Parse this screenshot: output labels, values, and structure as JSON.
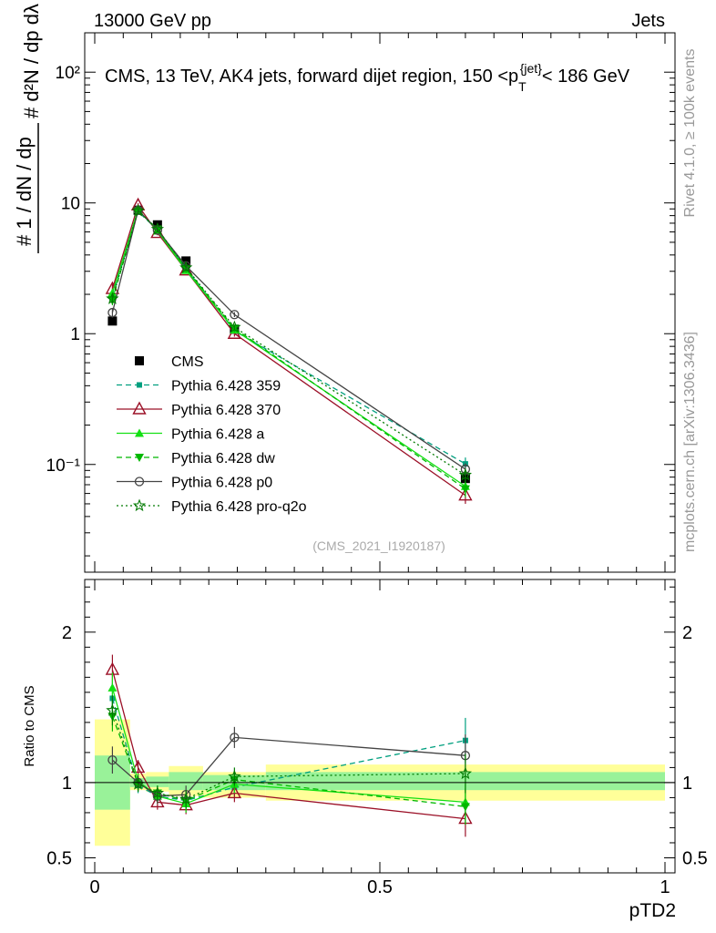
{
  "header": {
    "left": "13000 GeV pp",
    "right": "Jets"
  },
  "side_labels": {
    "rivet": "Rivet 4.1.0, ≥ 100k events",
    "mcplots": "mcplots.cern.ch [arXiv:1306.3436]"
  },
  "watermark": "(CMS_2021_I1920187)",
  "colors": {
    "cms": "#000000",
    "p359": "#009f7f",
    "p370": "#9b1027",
    "pa": "#14e014",
    "pdw": "#00b800",
    "pp0": "#444444",
    "pq2o": "#007a00",
    "band_stat": "#99f299",
    "band_tot": "#ffff99"
  },
  "chart_data": [
    {
      "type": "line",
      "panel": "main",
      "title": "CMS, 13 TeV, AK4 jets, forward dijet region, 150 <p_T^{jet}< 186 GeV",
      "ylabel": "1/dN/dp_T  d²N/(dp_T dλ)",
      "yscale": "log",
      "ylim": [
        0.015,
        200
      ],
      "xlim": [
        -0.03,
        1.0
      ],
      "ytick_labels": [
        "10⁻¹",
        "1",
        "10",
        "10²"
      ],
      "ytick_values": [
        0.1,
        1,
        10,
        100
      ],
      "x": [
        0.031,
        0.076,
        0.11,
        0.16,
        0.245,
        0.65
      ],
      "series": [
        {
          "name": "CMS",
          "key": "cms",
          "values": [
            1.25,
            8.8,
            6.8,
            3.6,
            1.08,
            0.078
          ],
          "errors": [
            0.05,
            0.3,
            0.2,
            0.12,
            0.05,
            0.005
          ]
        },
        {
          "name": "Pythia 6.428 359",
          "key": "p359",
          "values": [
            1.95,
            8.6,
            6.2,
            3.15,
            1.05,
            0.101
          ],
          "errors": [
            0.15,
            0.3,
            0.25,
            0.15,
            0.05,
            0.012
          ]
        },
        {
          "name": "Pythia 6.428 370",
          "key": "p370",
          "values": [
            2.2,
            9.6,
            5.9,
            3.05,
            1.0,
            0.058
          ],
          "errors": [
            0.2,
            0.35,
            0.25,
            0.15,
            0.05,
            0.008
          ]
        },
        {
          "name": "Pythia 6.428 a",
          "key": "pa",
          "values": [
            2.05,
            8.9,
            6.1,
            3.05,
            1.07,
            0.068
          ],
          "errors": [
            0.15,
            0.3,
            0.25,
            0.15,
            0.05,
            0.009
          ]
        },
        {
          "name": "Pythia 6.428 dw",
          "key": "pdw",
          "values": [
            1.8,
            8.7,
            6.3,
            3.15,
            1.1,
            0.065
          ],
          "errors": [
            0.15,
            0.3,
            0.25,
            0.15,
            0.05,
            0.009
          ]
        },
        {
          "name": "Pythia 6.428 p0",
          "key": "pp0",
          "values": [
            1.45,
            8.8,
            6.2,
            3.3,
            1.4,
            0.092
          ],
          "errors": [
            0.12,
            0.3,
            0.25,
            0.15,
            0.06,
            0.01
          ]
        },
        {
          "name": "Pythia 6.428 pro-q2o",
          "key": "pq2o",
          "values": [
            1.85,
            8.7,
            6.3,
            3.2,
            1.12,
            0.083
          ],
          "errors": [
            0.15,
            0.3,
            0.25,
            0.15,
            0.05,
            0.01
          ]
        }
      ]
    },
    {
      "type": "line",
      "panel": "ratio",
      "ylabel": "Ratio to CMS",
      "xlabel": "pTD2",
      "ylim": [
        0.4,
        2.35
      ],
      "xlim": [
        -0.03,
        1.0
      ],
      "ytick_labels": [
        "0.5",
        "1",
        "2"
      ],
      "ytick_values": [
        0.5,
        1,
        2
      ],
      "xtick_labels": [
        "0",
        "0.5",
        "1"
      ],
      "xtick_values": [
        0,
        0.5,
        1
      ],
      "x": [
        0.031,
        0.076,
        0.11,
        0.16,
        0.245,
        0.65
      ],
      "bands": {
        "edges": [
          0.0,
          0.062,
          0.09,
          0.13,
          0.19,
          0.3,
          1.0
        ],
        "tot_lo": [
          0.58,
          0.95,
          0.94,
          0.91,
          0.9,
          0.88
        ],
        "tot_hi": [
          1.42,
          1.06,
          1.07,
          1.11,
          1.07,
          1.12
        ],
        "stat_lo": [
          0.82,
          0.97,
          0.97,
          0.95,
          0.95,
          0.95
        ],
        "stat_hi": [
          1.18,
          1.03,
          1.04,
          1.07,
          1.05,
          1.07
        ]
      },
      "series": [
        {
          "name": "Pythia 6.428 359",
          "key": "p359",
          "values": [
            1.56,
            0.98,
            0.91,
            0.88,
            0.97,
            1.28
          ],
          "errors": [
            0.1,
            0.05,
            0.05,
            0.06,
            0.06,
            0.15
          ]
        },
        {
          "name": "Pythia 6.428 370",
          "key": "p370",
          "values": [
            1.75,
            1.1,
            0.87,
            0.85,
            0.93,
            0.76
          ],
          "errors": [
            0.1,
            0.05,
            0.05,
            0.06,
            0.06,
            0.12
          ]
        },
        {
          "name": "Pythia 6.428 a",
          "key": "pa",
          "values": [
            1.63,
            1.01,
            0.91,
            0.86,
            0.99,
            0.87
          ],
          "errors": [
            0.1,
            0.05,
            0.05,
            0.06,
            0.06,
            0.12
          ]
        },
        {
          "name": "Pythia 6.428 dw",
          "key": "pdw",
          "values": [
            1.44,
            0.99,
            0.93,
            0.88,
            1.02,
            0.84
          ],
          "errors": [
            0.1,
            0.05,
            0.05,
            0.06,
            0.06,
            0.12
          ]
        },
        {
          "name": "Pythia 6.428 p0",
          "key": "pp0",
          "values": [
            1.15,
            1.0,
            0.91,
            0.92,
            1.3,
            1.18
          ],
          "errors": [
            0.09,
            0.05,
            0.05,
            0.06,
            0.07,
            0.14
          ]
        },
        {
          "name": "Pythia 6.428 pro-q2o",
          "key": "pq2o",
          "values": [
            1.48,
            0.99,
            0.93,
            0.89,
            1.04,
            1.06
          ],
          "errors": [
            0.1,
            0.05,
            0.05,
            0.06,
            0.06,
            0.13
          ]
        }
      ]
    }
  ]
}
